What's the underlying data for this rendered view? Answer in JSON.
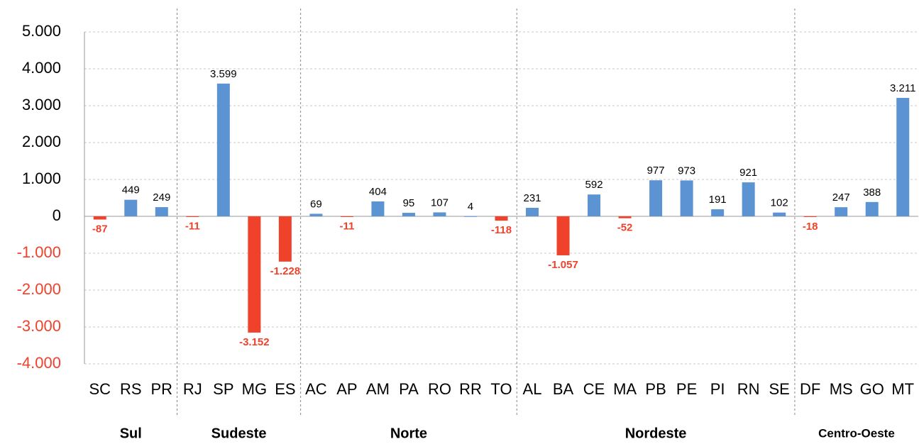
{
  "chart_data": {
    "type": "bar",
    "categories": [
      "SC",
      "RS",
      "PR",
      "RJ",
      "SP",
      "MG",
      "ES",
      "AC",
      "AP",
      "AM",
      "PA",
      "RO",
      "RR",
      "TO",
      "AL",
      "BA",
      "CE",
      "MA",
      "PB",
      "PE",
      "PI",
      "RN",
      "SE",
      "DF",
      "MS",
      "GO",
      "MT"
    ],
    "values": [
      -87,
      449,
      249,
      -11,
      3599,
      -3152,
      -1228,
      69,
      -11,
      404,
      95,
      107,
      4,
      -118,
      231,
      -1057,
      592,
      -52,
      977,
      973,
      191,
      921,
      102,
      -18,
      247,
      388,
      3211
    ],
    "value_labels": [
      "-87",
      "449",
      "249",
      "-11",
      "3.599",
      "-3.152",
      "-1.228",
      "69",
      "-11",
      "404",
      "95",
      "107",
      "4",
      "-118",
      "231",
      "-1.057",
      "592",
      "-52",
      "977",
      "973",
      "191",
      "921",
      "102",
      "-18",
      "247",
      "388",
      "3.211"
    ],
    "color": "#5b93d3",
    "negative_color": "#f0412b",
    "ylim": [
      -4000,
      5000
    ],
    "yticks": [
      {
        "value": -4000,
        "label": "-4.000"
      },
      {
        "value": -3000,
        "label": "-3.000"
      },
      {
        "value": -2000,
        "label": "-2.000"
      },
      {
        "value": -1000,
        "label": "-1.000"
      },
      0,
      {
        "value": 1000,
        "label": "1.000"
      },
      {
        "value": 2000,
        "label": "2.000"
      },
      {
        "value": 3000,
        "label": "3.000"
      },
      {
        "value": 4000,
        "label": "4.000"
      },
      {
        "value": 5000,
        "label": "5.000"
      }
    ],
    "grid": true,
    "groups": [
      {
        "name": "Sul",
        "size": 3
      },
      {
        "name": "Sudeste",
        "size": 4
      },
      {
        "name": "Norte",
        "size": 7
      },
      {
        "name": "Nordeste",
        "size": 9
      },
      {
        "name": "Centro-Oeste",
        "size": 4
      }
    ]
  }
}
